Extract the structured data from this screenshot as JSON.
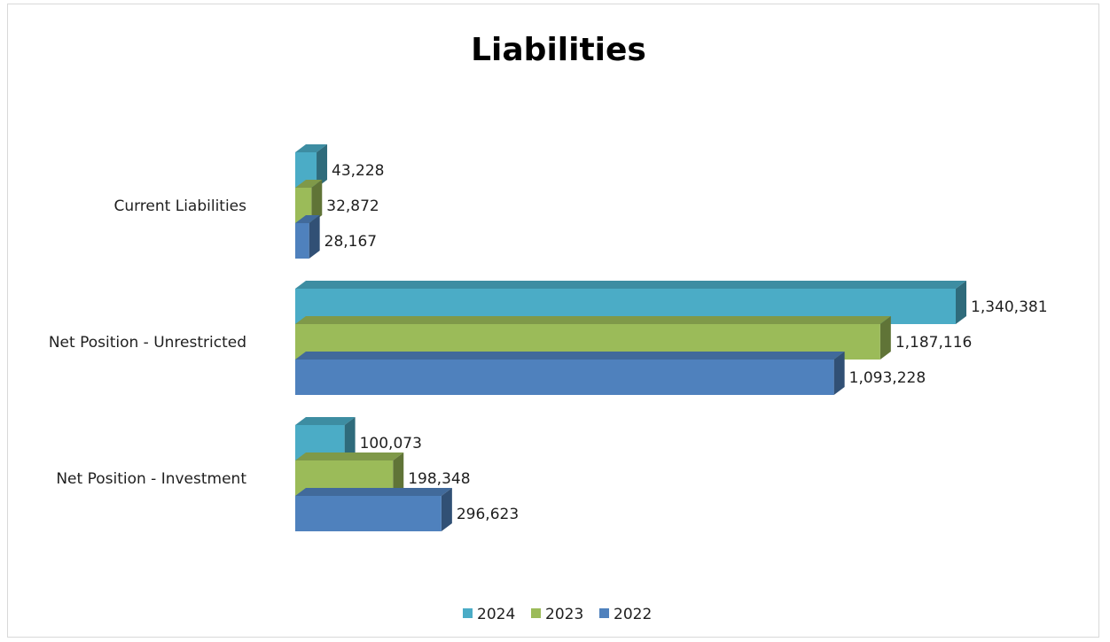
{
  "chart_data": {
    "type": "bar",
    "orientation": "horizontal",
    "style": "3d",
    "title": "Liabilities",
    "xlabel": "",
    "ylabel": "",
    "grid": false,
    "legend_position": "bottom",
    "categories": [
      "Current Liabilities",
      "Net Position - Unrestricted",
      "Net Position - Investment"
    ],
    "series": [
      {
        "name": "2024",
        "color": "#4bacc6",
        "values": [
          43228,
          1340381,
          100073
        ],
        "labels": [
          "43,228",
          "1,340,381",
          "100,073"
        ]
      },
      {
        "name": "2023",
        "color": "#9bbb59",
        "values": [
          32872,
          1187116,
          198348
        ],
        "labels": [
          "32,872",
          "1,187,116",
          "198,348"
        ]
      },
      {
        "name": "2022",
        "color": "#4f81bd",
        "values": [
          28167,
          1093228,
          296623
        ],
        "labels": [
          "28,167",
          "1,093,228",
          "296,623"
        ]
      }
    ],
    "legend": [
      "2024",
      "2023",
      "2022"
    ]
  }
}
